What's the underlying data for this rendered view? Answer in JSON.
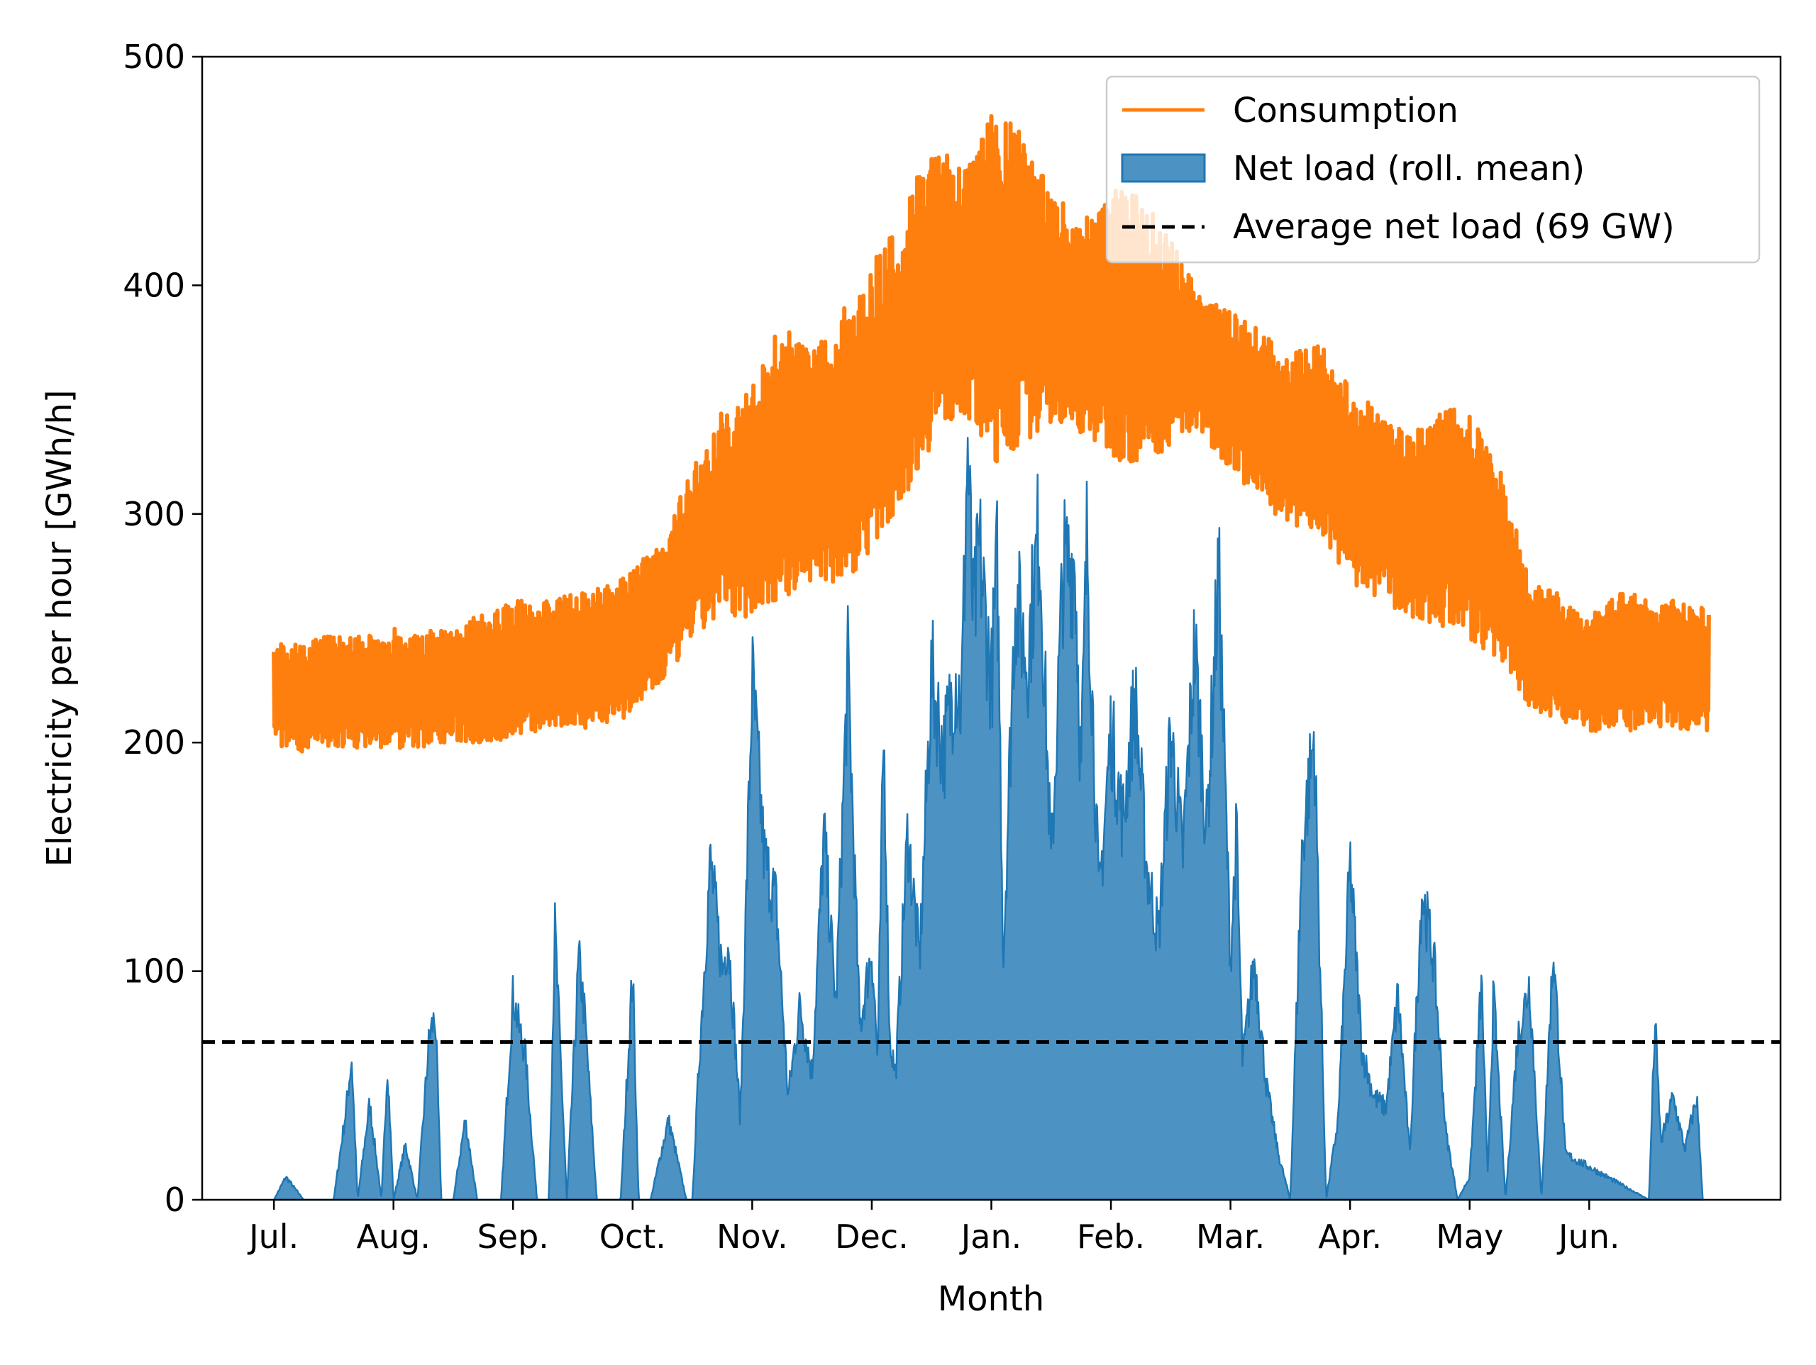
{
  "chart_data": {
    "type": "line",
    "xlabel": "Month",
    "ylabel": "Electricity per hour [GWh/h]",
    "ylim": [
      0,
      500
    ],
    "yticks": [
      0,
      100,
      200,
      300,
      400,
      500
    ],
    "xticks": [
      "Jul.",
      "Aug.",
      "Sep.",
      "Oct.",
      "Nov.",
      "Dec.",
      "Jan.",
      "Feb.",
      "Mar.",
      "Apr.",
      "May",
      "Jun."
    ],
    "xlim_months": [
      -0.6,
      12.6
    ],
    "grid": false,
    "legend_position": "top-right",
    "reference_value": 69,
    "series": [
      {
        "name": "Consumption",
        "kind": "line",
        "color": "#ff7f0e",
        "x_month": [
          0.0,
          0.25,
          0.5,
          0.75,
          1.0,
          1.25,
          1.5,
          1.75,
          2.0,
          2.25,
          2.5,
          2.75,
          3.0,
          3.25,
          3.5,
          3.75,
          4.0,
          4.25,
          4.5,
          4.75,
          5.0,
          5.25,
          5.5,
          5.75,
          6.0,
          6.25,
          6.5,
          6.75,
          7.0,
          7.25,
          7.5,
          7.75,
          8.0,
          8.25,
          8.5,
          8.75,
          9.0,
          9.25,
          9.5,
          9.75,
          10.0,
          10.25,
          10.5,
          10.75,
          11.0,
          11.25,
          11.5,
          11.75,
          12.0
        ],
        "low": [
          198,
          196,
          197,
          198,
          197,
          198,
          200,
          199,
          202,
          205,
          206,
          207,
          212,
          225,
          245,
          255,
          255,
          262,
          270,
          268,
          285,
          305,
          330,
          345,
          320,
          330,
          340,
          335,
          325,
          320,
          330,
          335,
          320,
          305,
          295,
          290,
          270,
          262,
          255,
          250,
          245,
          235,
          215,
          210,
          205,
          204,
          205,
          206,
          205
        ],
        "high": [
          245,
          243,
          248,
          246,
          250,
          248,
          252,
          256,
          262,
          263,
          265,
          268,
          275,
          290,
          320,
          345,
          355,
          385,
          370,
          390,
          410,
          430,
          470,
          450,
          475,
          470,
          440,
          430,
          445,
          440,
          420,
          395,
          390,
          380,
          370,
          375,
          355,
          345,
          335,
          350,
          345,
          320,
          272,
          265,
          255,
          265,
          265,
          262,
          258
        ]
      },
      {
        "name": "Net load (roll. mean)",
        "kind": "area",
        "color": "#1f77b4",
        "x_month": [
          0.0,
          0.1,
          0.25,
          0.5,
          0.6,
          0.65,
          0.7,
          0.8,
          0.9,
          0.95,
          1.0,
          1.1,
          1.2,
          1.3,
          1.35,
          1.4,
          1.5,
          1.6,
          1.7,
          1.9,
          2.0,
          2.05,
          2.1,
          2.2,
          2.3,
          2.35,
          2.45,
          2.55,
          2.6,
          2.7,
          2.8,
          2.9,
          3.0,
          3.05,
          3.15,
          3.3,
          3.45,
          3.5,
          3.55,
          3.65,
          3.75,
          3.8,
          3.9,
          4.0,
          4.1,
          4.2,
          4.3,
          4.4,
          4.5,
          4.6,
          4.7,
          4.8,
          4.9,
          5.0,
          5.05,
          5.1,
          5.15,
          5.2,
          5.3,
          5.4,
          5.5,
          5.6,
          5.7,
          5.75,
          5.8,
          5.85,
          5.9,
          6.0,
          6.05,
          6.1,
          6.2,
          6.3,
          6.4,
          6.5,
          6.6,
          6.7,
          6.75,
          6.8,
          6.9,
          7.0,
          7.1,
          7.2,
          7.3,
          7.4,
          7.5,
          7.6,
          7.7,
          7.8,
          7.9,
          8.0,
          8.05,
          8.1,
          8.2,
          8.3,
          8.4,
          8.5,
          8.6,
          8.7,
          8.8,
          8.9,
          9.0,
          9.1,
          9.2,
          9.3,
          9.4,
          9.5,
          9.6,
          9.7,
          9.8,
          9.9,
          10.0,
          10.1,
          10.15,
          10.2,
          10.3,
          10.4,
          10.5,
          10.6,
          10.7,
          10.8,
          11.5,
          11.55,
          11.6,
          11.7,
          11.8,
          11.9,
          11.95
        ],
        "y": [
          0,
          10,
          0,
          0,
          38,
          62,
          0,
          42,
          0,
          59,
          0,
          24,
          0,
          72,
          80,
          0,
          0,
          35,
          0,
          0,
          90,
          75,
          65,
          0,
          0,
          118,
          0,
          105,
          80,
          0,
          0,
          0,
          100,
          0,
          0,
          35,
          0,
          0,
          55,
          148,
          100,
          115,
          35,
          228,
          150,
          130,
          45,
          85,
          55,
          160,
          85,
          233,
          75,
          110,
          60,
          205,
          70,
          55,
          160,
          105,
          230,
          195,
          230,
          215,
          330,
          250,
          285,
          225,
          280,
          105,
          265,
          235,
          295,
          145,
          275,
          280,
          185,
          290,
          130,
          205,
          165,
          220,
          145,
          115,
          205,
          150,
          243,
          160,
          275,
          105,
          160,
          60,
          105,
          50,
          20,
          0,
          155,
          203,
          0,
          35,
          148,
          65,
          45,
          40,
          90,
          20,
          135,
          105,
          30,
          0,
          10,
          95,
          10,
          90,
          0,
          70,
          95,
          0,
          110,
          20,
          0,
          78,
          25,
          45,
          22,
          45,
          0
        ]
      },
      {
        "name": "Average net load (69 GW)",
        "kind": "hline",
        "color": "#000000",
        "value": 69
      }
    ]
  }
}
